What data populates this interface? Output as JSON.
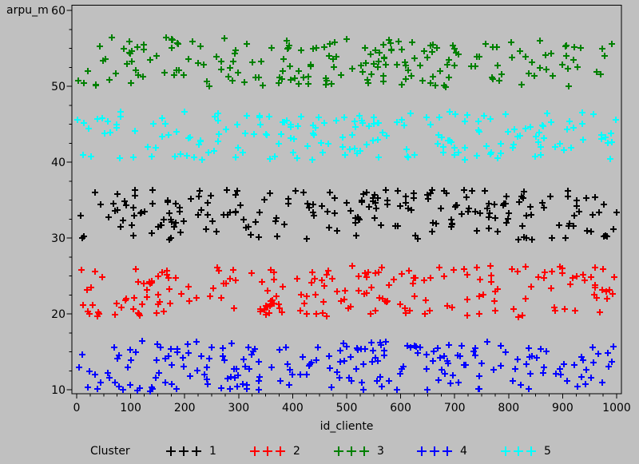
{
  "window": {
    "background": "#c0c0c0",
    "frame_color": "#000000"
  },
  "chart": {
    "ylabel": "arpu_m",
    "xlabel": "id_cliente"
  },
  "chart_data": {
    "type": "scatter",
    "title": "",
    "xlabel": "id_cliente",
    "ylabel": "arpu_m",
    "xlim": [
      0,
      1000
    ],
    "ylim": [
      10,
      60
    ],
    "x_ticks": [
      0,
      100,
      200,
      300,
      400,
      500,
      600,
      700,
      800,
      900,
      1000
    ],
    "y_ticks": [
      10,
      20,
      30,
      40,
      50,
      60
    ],
    "x_minor_step": 25,
    "y_minor_step": 2.5,
    "grid": false,
    "legend_position": "bottom",
    "marker": "plus",
    "point_distribution": "uniform within band, values estimated from pixels",
    "series": [
      {
        "name": "1",
        "color": "#000000",
        "x_range": [
          1,
          1000
        ],
        "y_band": [
          29.8,
          36.4
        ],
        "count": 212,
        "seed": 7
      },
      {
        "name": "2",
        "color": "#ff0000",
        "x_range": [
          1,
          1000
        ],
        "y_band": [
          19.6,
          26.4
        ],
        "count": 205,
        "seed": 13
      },
      {
        "name": "3",
        "color": "#008000",
        "x_range": [
          1,
          1000
        ],
        "y_band": [
          49.9,
          56.5
        ],
        "count": 200,
        "seed": 21
      },
      {
        "name": "4",
        "color": "#0000ff",
        "x_range": [
          1,
          1000
        ],
        "y_band": [
          9.8,
          16.4
        ],
        "count": 212,
        "seed": 42
      },
      {
        "name": "5",
        "color": "#00ffff",
        "x_range": [
          1,
          1000
        ],
        "y_band": [
          40.3,
          46.7
        ],
        "count": 190,
        "seed": 99
      }
    ]
  },
  "legend": {
    "title": "Cluster",
    "entries": [
      {
        "label": "1",
        "color": "#000000"
      },
      {
        "label": "2",
        "color": "#ff0000"
      },
      {
        "label": "3",
        "color": "#008000"
      },
      {
        "label": "4",
        "color": "#0000ff"
      },
      {
        "label": "5",
        "color": "#00ffff"
      }
    ]
  }
}
